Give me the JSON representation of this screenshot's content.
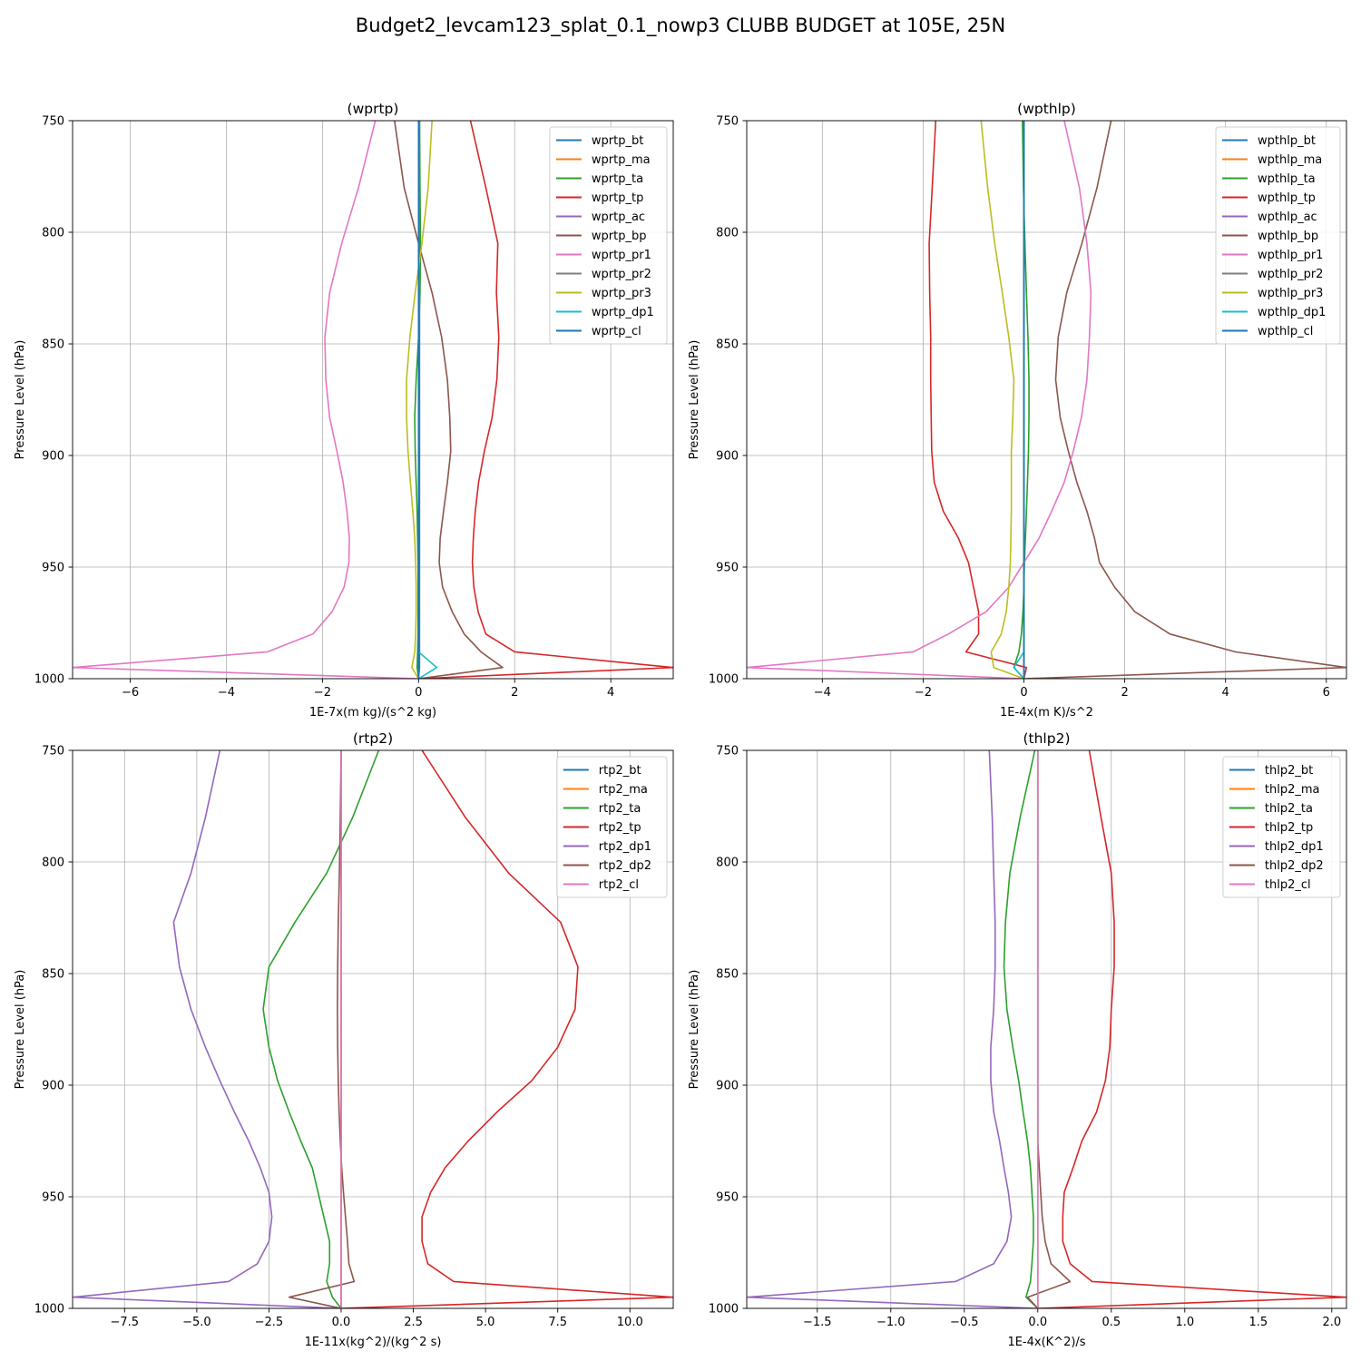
{
  "figure": {
    "suptitle": "Budget2_levcam123_splat_0.1_nowp3 CLUBB BUDGET at 105E, 25N"
  },
  "colors": {
    "tab10": [
      "#1f77b4",
      "#ff7f0e",
      "#2ca02c",
      "#d62728",
      "#9467bd",
      "#8c564b",
      "#e377c2",
      "#7f7f7f",
      "#bcbd22",
      "#17becf"
    ],
    "grid": "#b0b0b0"
  },
  "chart_data": [
    {
      "type": "line",
      "title": "(wprtp)",
      "xlabel": "1E-7x(m kg)/(s^2 kg)",
      "ylabel": "Pressure Level (hPa)",
      "xlim": [
        -7.2,
        5.3
      ],
      "ylim": [
        1000,
        750
      ],
      "xticks": [
        -6,
        -4,
        -2,
        0,
        2,
        4
      ],
      "yticks": [
        750,
        800,
        850,
        900,
        950,
        1000
      ],
      "grid": true,
      "legend_loc": "upper right",
      "levels": [
        750,
        780,
        805,
        827,
        847,
        866,
        883,
        898,
        912,
        925,
        937,
        948,
        959,
        970,
        980,
        988,
        995,
        1000
      ],
      "series": [
        {
          "name": "wprtp_bt",
          "color": "#1f77b4",
          "values": [
            0.02,
            0.02,
            0.02,
            0.02,
            0.02,
            0.02,
            0.02,
            0.02,
            0.02,
            0.02,
            0.02,
            0.02,
            0.02,
            0.02,
            0.02,
            0.02,
            0.02,
            0.0
          ]
        },
        {
          "name": "wprtp_ma",
          "color": "#ff7f0e",
          "values": [
            0.0,
            0.0,
            0.0,
            0.0,
            0.0,
            0.0,
            0.0,
            0.0,
            0.0,
            0.0,
            0.0,
            0.0,
            0.0,
            0.0,
            0.0,
            0.0,
            0.0,
            0.0
          ]
        },
        {
          "name": "wprtp_ta",
          "color": "#2ca02c",
          "values": [
            0.02,
            0.03,
            0.04,
            0.03,
            0.0,
            -0.05,
            -0.08,
            -0.07,
            -0.05,
            -0.03,
            -0.02,
            -0.01,
            -0.01,
            -0.01,
            -0.01,
            -0.02,
            -0.03,
            0.0
          ]
        },
        {
          "name": "wprtp_tp",
          "color": "#d62728",
          "values": [
            1.08,
            1.4,
            1.65,
            1.62,
            1.67,
            1.63,
            1.53,
            1.37,
            1.25,
            1.18,
            1.14,
            1.12,
            1.15,
            1.24,
            1.4,
            2.0,
            5.3,
            0.0
          ]
        },
        {
          "name": "wprtp_ac",
          "color": "#9467bd",
          "values": [
            0.0,
            0.0,
            0.0,
            0.0,
            0.0,
            0.0,
            0.0,
            0.0,
            0.0,
            0.0,
            0.0,
            0.0,
            0.0,
            0.0,
            0.0,
            0.0,
            0.0,
            0.0
          ]
        },
        {
          "name": "wprtp_bp",
          "color": "#8c564b",
          "values": [
            -0.5,
            -0.3,
            0.0,
            0.28,
            0.48,
            0.6,
            0.65,
            0.67,
            0.6,
            0.52,
            0.45,
            0.43,
            0.5,
            0.7,
            0.95,
            1.3,
            1.75,
            0.0
          ]
        },
        {
          "name": "wprtp_pr1",
          "color": "#e377c2",
          "values": [
            -0.9,
            -1.25,
            -1.6,
            -1.85,
            -1.95,
            -1.93,
            -1.85,
            -1.7,
            -1.57,
            -1.49,
            -1.44,
            -1.45,
            -1.55,
            -1.8,
            -2.2,
            -3.15,
            -7.2,
            0.0
          ]
        },
        {
          "name": "wprtp_pr2",
          "color": "#7f7f7f",
          "values": [
            0.0,
            0.0,
            0.0,
            0.0,
            0.0,
            0.0,
            0.0,
            0.0,
            0.0,
            0.0,
            0.0,
            0.0,
            0.0,
            0.0,
            0.0,
            0.0,
            0.0,
            0.0
          ]
        },
        {
          "name": "wprtp_pr3",
          "color": "#bcbd22",
          "values": [
            0.28,
            0.2,
            0.07,
            -0.07,
            -0.18,
            -0.25,
            -0.25,
            -0.22,
            -0.17,
            -0.12,
            -0.08,
            -0.06,
            -0.05,
            -0.05,
            -0.06,
            -0.08,
            -0.14,
            0.0
          ]
        },
        {
          "name": "wprtp_dp1",
          "color": "#17becf",
          "values": [
            0.0,
            0.0,
            0.0,
            0.0,
            0.0,
            0.0,
            0.0,
            0.0,
            0.0,
            0.0,
            0.0,
            0.0,
            0.0,
            0.0,
            0.0,
            0.0,
            0.38,
            0.0
          ]
        },
        {
          "name": "wprtp_cl",
          "color": "#1f77b4",
          "values": [
            0.0,
            0.0,
            0.0,
            0.0,
            0.0,
            0.0,
            0.0,
            0.0,
            0.0,
            0.0,
            0.0,
            0.0,
            0.0,
            0.0,
            0.0,
            0.0,
            0.0,
            0.0
          ]
        }
      ]
    },
    {
      "type": "line",
      "title": "(wpthlp)",
      "xlabel": "1E-4x(m K)/s^2",
      "ylabel": "Pressure Level (hPa)",
      "xlim": [
        -5.5,
        6.4
      ],
      "ylim": [
        1000,
        750
      ],
      "xticks": [
        -4,
        -2,
        0,
        2,
        4,
        6
      ],
      "yticks": [
        750,
        800,
        850,
        900,
        950,
        1000
      ],
      "grid": true,
      "legend_loc": "upper right",
      "levels": [
        750,
        780,
        805,
        827,
        847,
        866,
        883,
        898,
        912,
        925,
        937,
        948,
        959,
        970,
        980,
        988,
        995,
        1000
      ],
      "series": [
        {
          "name": "wpthlp_bt",
          "color": "#1f77b4",
          "values": [
            0.0,
            0.0,
            0.0,
            0.0,
            0.0,
            0.0,
            0.0,
            0.0,
            0.0,
            0.0,
            0.0,
            0.0,
            0.0,
            0.0,
            0.0,
            0.0,
            0.0,
            0.0
          ]
        },
        {
          "name": "wpthlp_ma",
          "color": "#ff7f0e",
          "values": [
            0.0,
            0.0,
            0.0,
            0.0,
            0.0,
            0.0,
            0.0,
            0.0,
            0.0,
            0.0,
            0.0,
            0.0,
            0.0,
            0.0,
            0.0,
            0.0,
            0.0,
            0.0
          ]
        },
        {
          "name": "wpthlp_ta",
          "color": "#2ca02c",
          "values": [
            -0.03,
            -0.01,
            0.02,
            0.05,
            0.08,
            0.1,
            0.1,
            0.09,
            0.07,
            0.05,
            0.03,
            0.01,
            0.0,
            -0.02,
            -0.05,
            -0.1,
            -0.2,
            0.0
          ]
        },
        {
          "name": "wpthlp_tp",
          "color": "#d62728",
          "values": [
            -1.75,
            -1.82,
            -1.88,
            -1.87,
            -1.85,
            -1.85,
            -1.84,
            -1.83,
            -1.78,
            -1.6,
            -1.3,
            -1.1,
            -1.0,
            -0.9,
            -0.9,
            -1.15,
            0.05,
            0.0
          ]
        },
        {
          "name": "wpthlp_ac",
          "color": "#9467bd",
          "values": [
            0.0,
            0.0,
            0.0,
            0.0,
            0.0,
            0.0,
            0.0,
            0.0,
            0.0,
            0.0,
            0.0,
            0.0,
            0.0,
            0.0,
            0.0,
            0.0,
            0.0,
            0.0
          ]
        },
        {
          "name": "wpthlp_bp",
          "color": "#8c564b",
          "values": [
            1.73,
            1.45,
            1.15,
            0.85,
            0.68,
            0.63,
            0.72,
            0.88,
            1.05,
            1.25,
            1.4,
            1.5,
            1.8,
            2.2,
            2.9,
            4.2,
            6.4,
            0.0
          ]
        },
        {
          "name": "wpthlp_pr1",
          "color": "#e377c2",
          "values": [
            0.8,
            1.1,
            1.25,
            1.33,
            1.3,
            1.25,
            1.14,
            0.98,
            0.8,
            0.55,
            0.3,
            0.0,
            -0.3,
            -0.75,
            -1.5,
            -2.2,
            -5.5,
            0.0
          ]
        },
        {
          "name": "wpthlp_pr2",
          "color": "#7f7f7f",
          "values": [
            0.0,
            0.0,
            0.0,
            0.0,
            0.0,
            0.0,
            0.0,
            0.0,
            0.0,
            0.0,
            0.0,
            0.0,
            0.0,
            0.0,
            0.0,
            0.0,
            0.0,
            0.0
          ]
        },
        {
          "name": "wpthlp_pr3",
          "color": "#bcbd22",
          "values": [
            -0.85,
            -0.72,
            -0.58,
            -0.43,
            -0.3,
            -0.2,
            -0.22,
            -0.25,
            -0.25,
            -0.25,
            -0.26,
            -0.27,
            -0.3,
            -0.35,
            -0.45,
            -0.65,
            -0.6,
            0.0
          ]
        },
        {
          "name": "wpthlp_dp1",
          "color": "#17becf",
          "values": [
            0.0,
            0.0,
            0.0,
            0.0,
            0.0,
            0.0,
            0.0,
            0.0,
            0.0,
            0.0,
            0.0,
            0.0,
            0.0,
            0.0,
            0.0,
            0.0,
            -0.2,
            0.0
          ]
        },
        {
          "name": "wpthlp_cl",
          "color": "#1f77b4",
          "values": [
            0.0,
            0.0,
            0.0,
            0.0,
            0.0,
            0.0,
            0.0,
            0.0,
            0.0,
            0.0,
            0.0,
            0.0,
            0.0,
            0.0,
            0.0,
            0.0,
            0.0,
            0.0
          ]
        }
      ]
    },
    {
      "type": "line",
      "title": "(rtp2)",
      "xlabel": "1E-11x(kg^2)/(kg^2 s)",
      "ylabel": "Pressure Level (hPa)",
      "xlim": [
        -9.3,
        11.5
      ],
      "ylim": [
        1000,
        750
      ],
      "xticks": [
        -7.5,
        -5.0,
        -2.5,
        0.0,
        2.5,
        5.0,
        7.5,
        10.0
      ],
      "yticks": [
        750,
        800,
        850,
        900,
        950,
        1000
      ],
      "grid": true,
      "legend_loc": "upper right",
      "levels": [
        750,
        780,
        805,
        827,
        847,
        866,
        883,
        898,
        912,
        925,
        937,
        948,
        959,
        970,
        980,
        988,
        995,
        1000
      ],
      "series": [
        {
          "name": "rtp2_bt",
          "color": "#1f77b4",
          "values": [
            0.0,
            0.0,
            0.0,
            0.0,
            0.0,
            0.0,
            0.0,
            0.0,
            0.0,
            0.0,
            0.0,
            0.0,
            0.0,
            0.0,
            0.0,
            0.0,
            0.0,
            0.0
          ]
        },
        {
          "name": "rtp2_ma",
          "color": "#ff7f0e",
          "values": [
            0.0,
            0.0,
            0.0,
            0.0,
            0.0,
            0.0,
            0.0,
            0.0,
            0.0,
            0.0,
            0.0,
            0.0,
            0.0,
            0.0,
            0.0,
            0.0,
            0.0,
            0.0
          ]
        },
        {
          "name": "rtp2_ta",
          "color": "#2ca02c",
          "values": [
            1.3,
            0.4,
            -0.5,
            -1.6,
            -2.5,
            -2.7,
            -2.5,
            -2.2,
            -1.8,
            -1.4,
            -1.0,
            -0.8,
            -0.6,
            -0.4,
            -0.4,
            -0.5,
            -0.3,
            0.0
          ]
        },
        {
          "name": "rtp2_tp",
          "color": "#d62728",
          "values": [
            2.8,
            4.3,
            5.8,
            7.6,
            8.2,
            8.1,
            7.5,
            6.6,
            5.4,
            4.4,
            3.6,
            3.1,
            2.8,
            2.8,
            3.0,
            3.9,
            11.5,
            0.0
          ]
        },
        {
          "name": "rtp2_dp1",
          "color": "#9467bd",
          "values": [
            -4.2,
            -4.7,
            -5.2,
            -5.8,
            -5.6,
            -5.2,
            -4.7,
            -4.2,
            -3.7,
            -3.2,
            -2.8,
            -2.5,
            -2.4,
            -2.5,
            -2.9,
            -3.9,
            -9.3,
            0.0
          ]
        },
        {
          "name": "rtp2_dp2",
          "color": "#8c564b",
          "values": [
            0.0,
            -0.03,
            -0.06,
            -0.1,
            -0.12,
            -0.13,
            -0.12,
            -0.1,
            -0.07,
            -0.03,
            0.02,
            0.08,
            0.15,
            0.22,
            0.27,
            0.45,
            -1.8,
            0.0
          ]
        },
        {
          "name": "rtp2_cl",
          "color": "#e377c2",
          "values": [
            0.0,
            0.0,
            0.0,
            0.0,
            0.0,
            0.0,
            0.0,
            0.0,
            0.0,
            0.0,
            0.0,
            0.0,
            0.0,
            0.0,
            0.0,
            0.0,
            0.0,
            0.0
          ]
        }
      ]
    },
    {
      "type": "line",
      "title": "(thlp2)",
      "xlabel": "1E-4x(K^2)/s",
      "ylabel": "Pressure Level (hPa)",
      "xlim": [
        -1.98,
        2.1
      ],
      "ylim": [
        1000,
        750
      ],
      "xticks": [
        -1.5,
        -1.0,
        -0.5,
        0.0,
        0.5,
        1.0,
        1.5,
        2.0
      ],
      "yticks": [
        750,
        800,
        850,
        900,
        950,
        1000
      ],
      "grid": true,
      "legend_loc": "upper right",
      "levels": [
        750,
        780,
        805,
        827,
        847,
        866,
        883,
        898,
        912,
        925,
        937,
        948,
        959,
        970,
        980,
        988,
        995,
        1000
      ],
      "series": [
        {
          "name": "thlp2_bt",
          "color": "#1f77b4",
          "values": [
            0.0,
            0.0,
            0.0,
            0.0,
            0.0,
            0.0,
            0.0,
            0.0,
            0.0,
            0.0,
            0.0,
            0.0,
            0.0,
            0.0,
            0.0,
            0.0,
            0.0,
            0.0
          ]
        },
        {
          "name": "thlp2_ma",
          "color": "#ff7f0e",
          "values": [
            0.0,
            0.0,
            0.0,
            0.0,
            0.0,
            0.0,
            0.0,
            0.0,
            0.0,
            0.0,
            0.0,
            0.0,
            0.0,
            0.0,
            0.0,
            0.0,
            0.0,
            0.0
          ]
        },
        {
          "name": "thlp2_ta",
          "color": "#2ca02c",
          "values": [
            -0.02,
            -0.12,
            -0.19,
            -0.22,
            -0.23,
            -0.21,
            -0.17,
            -0.13,
            -0.1,
            -0.07,
            -0.05,
            -0.04,
            -0.03,
            -0.03,
            -0.04,
            -0.05,
            -0.08,
            0.0
          ]
        },
        {
          "name": "thlp2_tp",
          "color": "#d62728",
          "values": [
            0.35,
            0.43,
            0.5,
            0.52,
            0.52,
            0.5,
            0.49,
            0.46,
            0.4,
            0.3,
            0.24,
            0.18,
            0.17,
            0.17,
            0.22,
            0.37,
            2.1,
            0.0
          ]
        },
        {
          "name": "thlp2_dp1",
          "color": "#9467bd",
          "values": [
            -0.33,
            -0.31,
            -0.3,
            -0.29,
            -0.29,
            -0.3,
            -0.32,
            -0.32,
            -0.3,
            -0.26,
            -0.23,
            -0.2,
            -0.18,
            -0.21,
            -0.3,
            -0.56,
            -1.98,
            0.0
          ]
        },
        {
          "name": "thlp2_dp2",
          "color": "#8c564b",
          "values": [
            0.0,
            0.0,
            0.0,
            0.0,
            0.0,
            0.0,
            0.0,
            0.0,
            0.0,
            0.0,
            0.01,
            0.02,
            0.03,
            0.05,
            0.09,
            0.22,
            -0.07,
            0.0
          ]
        },
        {
          "name": "thlp2_cl",
          "color": "#e377c2",
          "values": [
            0.0,
            0.0,
            0.0,
            0.0,
            0.0,
            0.0,
            0.0,
            0.0,
            0.0,
            0.0,
            0.0,
            0.0,
            0.0,
            0.0,
            0.0,
            0.0,
            0.0,
            0.0
          ]
        }
      ]
    }
  ]
}
